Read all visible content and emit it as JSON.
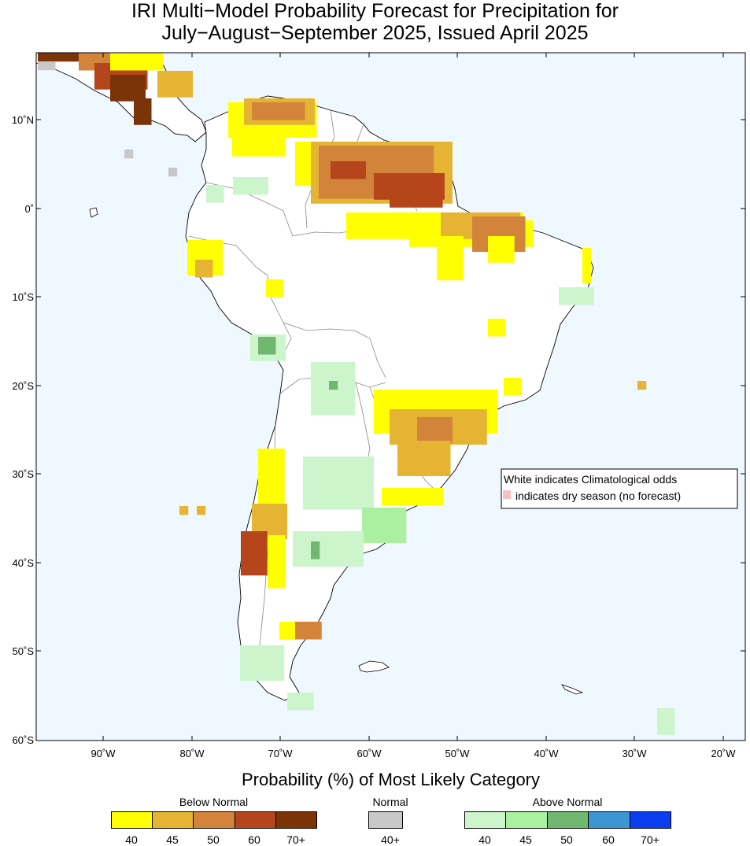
{
  "title": {
    "line1": "IRI Multi−Model Probability Forecast for Precipitation for",
    "line2": "July−August−September 2025, Issued April 2025"
  },
  "subtitle": "Probability (%) of Most Likely Category",
  "map": {
    "ocean_color": "#f0f8ff",
    "land_color": "#ffffff",
    "lon_ticks": [
      "90˚W",
      "80˚W",
      "70˚W",
      "60˚W",
      "50˚W",
      "40˚W",
      "30˚W",
      "20˚W"
    ],
    "lat_ticks": [
      "10˚N",
      "0˚",
      "10˚S",
      "20˚S",
      "30˚S",
      "40˚S",
      "50˚S",
      "60˚S"
    ],
    "note_line1": "White indicates Climatological odds",
    "note_line2": "indicates dry season (no forecast)",
    "dry_season_color": "#f4c2c2"
  },
  "legend": {
    "below_normal": {
      "title": "Below Normal",
      "labels": [
        "40",
        "45",
        "50",
        "60",
        "70+"
      ],
      "colors": [
        "#ffff00",
        "#e6b433",
        "#d2853a",
        "#b5461c",
        "#7a3408"
      ]
    },
    "normal": {
      "title": "Normal",
      "labels": [
        "40+"
      ],
      "colors": [
        "#c8c8c8"
      ]
    },
    "above_normal": {
      "title": "Above Normal",
      "labels": [
        "40",
        "45",
        "50",
        "60",
        "70+"
      ],
      "colors": [
        "#ccf5cc",
        "#aaf0a0",
        "#70b870",
        "#3c96d2",
        "#0a3cf0"
      ]
    }
  }
}
